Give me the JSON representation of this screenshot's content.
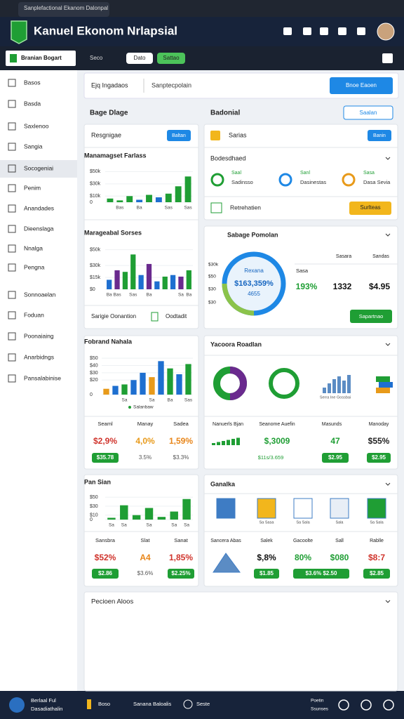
{
  "browser": {
    "tab": "Sanplefactional Ekanom Dalonpal"
  },
  "header": {
    "title": "Kanuel Ekonom Nrlapsial"
  },
  "subnav": {
    "user": "Branian Bogart",
    "buttons": [
      "Seco",
      "Dato",
      "Sattao"
    ]
  },
  "sidebar": {
    "items": [
      "Basos",
      "Basda",
      "Saxlenoo",
      "Sangia",
      "Socogeniai",
      "Penim",
      "Anandades",
      "Dieenslaga",
      "Nnalga",
      "Pengna",
      "Sonnoaelan",
      "Foduan",
      "Poonaiaing",
      "Anarbidngs",
      "Pansalabinise"
    ],
    "active": 4
  },
  "search": {
    "filter": "Ejq Ingadaos",
    "placeholder": "Sanptecpolain",
    "button": "Bnoe Eaoen"
  },
  "left": {
    "heading": "Bage Dlage",
    "card1": {
      "label": "Resgnigae",
      "button": "Baltan",
      "footer": "Sarigie Oonantion",
      "footer_right": "Oodtadit"
    },
    "card2": {
      "kpi_labels": [
        "Seaml",
        "Manay",
        "Sadea"
      ],
      "kpi_values": [
        "$2,9%",
        "4,0%",
        "1,59%"
      ],
      "pills": [
        "$35.78",
        "3.5%",
        "$3.3%"
      ]
    },
    "card3": {
      "kpi_labels": [
        "Sansbra",
        "Slat",
        "Sanat"
      ],
      "kpi_values": [
        "$52%",
        "A4",
        "1,85%"
      ],
      "pills": [
        "$2.86",
        "$3.6%",
        "$2.25%"
      ]
    }
  },
  "right": {
    "heading": "Badonial",
    "heading_button": "Saalan",
    "card1": {
      "label": "Sarias",
      "button": "Banin",
      "section": "Bodesdhaed",
      "items": [
        [
          "Saal",
          "Sadinsso"
        ],
        [
          "Sanl",
          "Dasinestas"
        ],
        [
          "Sasa",
          "Dasa Sevia"
        ]
      ],
      "row": "Retrehatien",
      "row_button": "Surlteas"
    },
    "card2": {
      "title": "Sabage Pomolan",
      "ring_top": "Rexana",
      "ring_value": "$163,359%",
      "ring_bottom": "4655",
      "ring_ticks": [
        "$30k",
        "$50",
        "$30",
        "$30"
      ],
      "col_heads": [
        "Sasara",
        "Sandas"
      ],
      "row_label": "Sasa",
      "values": [
        "193%",
        "1332",
        "$4.95"
      ],
      "button": "Sapartnao"
    },
    "card3": {
      "title": "Yacoora Roadlan",
      "caption": "Serra Ine Gossbai",
      "kpi_labels": [
        "Nanuerls Bjan",
        "Seanome Auefin",
        "Masunds",
        "Manoday"
      ],
      "kpi_values": [
        "$,3009",
        "47",
        "$55%"
      ],
      "sub": "$11s/3.659",
      "pills": [
        "$2.95",
        "$2.95"
      ]
    },
    "card4": {
      "title": "Ganalka",
      "icon_labels": [
        "Sa Sasa",
        "Sa Sala",
        "Sala",
        "Sa Sala"
      ],
      "kpi_labels": [
        "Sancera Abas",
        "Salek",
        "Gacoolte",
        "Sall",
        "Rablle"
      ],
      "kpi_values": [
        "$,8%",
        "80%",
        "$080",
        "$8:7"
      ],
      "pills": [
        "$1.85",
        "$3.6% $2.50",
        "$2.85"
      ]
    },
    "card5": {
      "title": "Pecioen Aloos"
    }
  },
  "footer": {
    "name": "Berlaal Ful",
    "sub": "Dasadiathalin",
    "links": [
      "Boso",
      "Sanana Baloalis",
      "Seste"
    ],
    "right_top": "Poetin",
    "right_bottom": "Ssunses"
  },
  "charts": [
    {
      "type": "bar",
      "title": "Manamagset Farlass",
      "ylim": [
        0,
        55
      ],
      "yticks": [
        0,
        {
          "value": 10,
          "label": "$10k"
        },
        {
          "value": 30,
          "label": "$30k"
        },
        {
          "value": 50,
          "label": "$50k"
        }
      ],
      "values": [
        6,
        3,
        10,
        4,
        12,
        8,
        14,
        26,
        42
      ],
      "colors": [
        "#1f9e34",
        "#1f9e34",
        "#1f9e34",
        "#1e6fd0",
        "#1f9e34",
        "#1e6fd0",
        "#1f9e34",
        "#1f9e34",
        "#1f9e34"
      ],
      "categories": [
        null,
        "Bas",
        null,
        "Ba",
        null,
        null,
        "Sas",
        null,
        "Sas"
      ]
    },
    {
      "type": "bar",
      "title": "Marageabal Sorses",
      "ylim": [
        0,
        55
      ],
      "yticks": [
        {
          "value": 0,
          "label": "$0"
        },
        {
          "value": 15,
          "label": "$15k"
        },
        {
          "value": 30,
          "label": "$30k"
        },
        {
          "value": 50,
          "label": "$50k"
        }
      ],
      "values": [
        12,
        24,
        22,
        44,
        18,
        32,
        10,
        16,
        18,
        16,
        24
      ],
      "colors": [
        "#1e6fd0",
        "#6a2a8e",
        "#1f9e34",
        "#1f9e34",
        "#1e6fd0",
        "#6a2a8e",
        "#1e6fd0",
        "#1f9e34",
        "#1e6fd0",
        "#6a2a8e",
        "#1f9e34"
      ],
      "categories": [
        "Ba",
        "Bas",
        null,
        "Sas",
        null,
        "Ba",
        null,
        null,
        null,
        "Sa",
        "Ba"
      ]
    },
    {
      "type": "bar",
      "title": "Fobrand Nahala",
      "ylim": [
        0,
        55
      ],
      "yticks": [
        0,
        {
          "value": 20,
          "label": "$20"
        },
        {
          "value": 30,
          "label": "$30"
        },
        {
          "value": 40,
          "label": "$40"
        },
        {
          "value": 50,
          "label": "$50"
        }
      ],
      "values": [
        8,
        12,
        14,
        20,
        30,
        24,
        46,
        36,
        28,
        42
      ],
      "colors": [
        "#e89a1a",
        "#1e6fd0",
        "#1f9e34",
        "#1e6fd0",
        "#1e6fd0",
        "#e89a1a",
        "#1e6fd0",
        "#1f9e34",
        "#1e6fd0",
        "#1f9e34"
      ],
      "categories": [
        null,
        null,
        "Sa",
        null,
        null,
        "Sa",
        null,
        "Ba",
        null,
        "Sas"
      ],
      "legend": "Salanbaw"
    },
    {
      "type": "bar",
      "title": "Pan Sian",
      "ylim": [
        0,
        55
      ],
      "yticks": [
        0,
        {
          "value": 10,
          "label": "$10"
        },
        {
          "value": 30,
          "label": "$30"
        },
        {
          "value": 50,
          "label": "$50"
        }
      ],
      "values": [
        4,
        32,
        10,
        26,
        6,
        18,
        46
      ],
      "colors": [
        "#1f9e34",
        "#1f9e34",
        "#1f9e34",
        "#1f9e34",
        "#1f9e34",
        "#1f9e34",
        "#1f9e34"
      ],
      "categories": [
        "Sa",
        "Sa",
        null,
        "Sa",
        null,
        "Sa",
        "Sa"
      ]
    }
  ]
}
